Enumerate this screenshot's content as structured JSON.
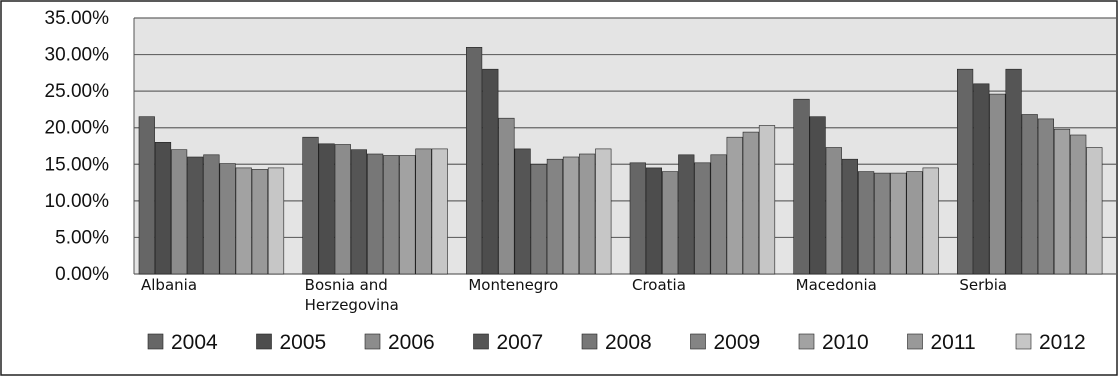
{
  "chart_data": {
    "type": "bar",
    "categories": [
      "Albania",
      "Bosnia and Herzegovina",
      "Montenegro",
      "Croatia",
      "Macedonia",
      "Serbia"
    ],
    "category_lines": [
      [
        "Albania"
      ],
      [
        "Bosnia and",
        "Herzegovina"
      ],
      [
        "Montenegro"
      ],
      [
        "Croatia"
      ],
      [
        "Macedonia"
      ],
      [
        "Serbia"
      ]
    ],
    "series": [
      {
        "name": "2004",
        "color": "#666666",
        "values": [
          21.5,
          18.7,
          31.0,
          15.2,
          23.9,
          28.0
        ]
      },
      {
        "name": "2005",
        "color": "#4d4d4d",
        "values": [
          18.0,
          17.8,
          28.0,
          14.5,
          21.5,
          26.0
        ]
      },
      {
        "name": "2006",
        "color": "#8c8c8c",
        "values": [
          17.0,
          17.7,
          21.3,
          14.0,
          17.3,
          24.6
        ]
      },
      {
        "name": "2007",
        "color": "#555555",
        "values": [
          16.0,
          17.0,
          17.1,
          16.3,
          15.7,
          28.0
        ]
      },
      {
        "name": "2008",
        "color": "#777777",
        "values": [
          16.3,
          16.4,
          15.0,
          15.2,
          14.0,
          21.8
        ]
      },
      {
        "name": "2009",
        "color": "#848484",
        "values": [
          15.1,
          16.2,
          15.7,
          16.3,
          13.8,
          21.2
        ]
      },
      {
        "name": "2010",
        "color": "#a2a2a2",
        "values": [
          14.5,
          16.2,
          16.0,
          18.7,
          13.8,
          19.8
        ]
      },
      {
        "name": "2011",
        "color": "#999999",
        "values": [
          14.3,
          17.1,
          16.4,
          19.4,
          14.0,
          19.0
        ]
      },
      {
        "name": "2012",
        "color": "#c6c6c6",
        "values": [
          14.5,
          17.1,
          17.1,
          20.3,
          14.5,
          17.3
        ]
      }
    ],
    "yticks": [
      "0.00%",
      "5.00%",
      "10.00%",
      "15.00%",
      "20.00%",
      "25.00%",
      "30.00%",
      "35.00%"
    ],
    "ylim": [
      0,
      35
    ],
    "title": "",
    "xlabel": "",
    "ylabel": "",
    "grid": true,
    "legend": "bottom",
    "plot_background": "#e4e4e4"
  }
}
